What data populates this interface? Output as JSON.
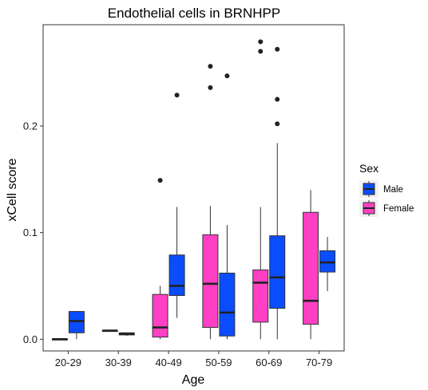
{
  "chart_data": {
    "type": "boxplot",
    "title": "Endothelial cells in BRNHPP",
    "xlabel": "Age",
    "ylabel": "xCell score",
    "ylim": [
      -0.011,
      0.295
    ],
    "yticks": [
      0.0,
      0.1,
      0.2
    ],
    "ytick_labels": [
      "0.0",
      "0.1",
      "0.2"
    ],
    "categories": [
      "20-29",
      "30-39",
      "40-49",
      "50-59",
      "60-69",
      "70-79"
    ],
    "grid": false,
    "legend": {
      "title": "Sex",
      "placement": "right",
      "entries": [
        {
          "name": "Male",
          "color": "#0A4DFF"
        },
        {
          "name": "Female",
          "color": "#FF40C4"
        }
      ]
    },
    "series": [
      {
        "name": "Male",
        "color": "#0A4DFF",
        "boxes": [
          {
            "category": "20-29",
            "min": 0.0,
            "q1": 0.006,
            "median": 0.017,
            "q3": 0.026,
            "max": 0.026,
            "outliers": []
          },
          {
            "category": "30-39",
            "min": 0.003,
            "q1": 0.004,
            "median": 0.005,
            "q3": 0.006,
            "max": 0.006,
            "outliers": []
          },
          {
            "category": "40-49",
            "min": 0.02,
            "q1": 0.041,
            "median": 0.05,
            "q3": 0.079,
            "max": 0.124,
            "outliers": [
              0.229
            ]
          },
          {
            "category": "50-59",
            "min": 0.0,
            "q1": 0.003,
            "median": 0.025,
            "q3": 0.062,
            "max": 0.107,
            "outliers": [
              0.247
            ]
          },
          {
            "category": "60-69",
            "min": 0.0,
            "q1": 0.029,
            "median": 0.058,
            "q3": 0.097,
            "max": 0.184,
            "outliers": [
              0.202,
              0.225,
              0.272
            ]
          },
          {
            "category": "70-79",
            "min": 0.045,
            "q1": 0.063,
            "median": 0.072,
            "q3": 0.083,
            "max": 0.096,
            "outliers": []
          }
        ]
      },
      {
        "name": "Female",
        "color": "#FF40C4",
        "boxes": [
          {
            "category": "20-29",
            "min": 0.0,
            "q1": 0.0,
            "median": 0.0,
            "q3": 0.0,
            "max": 0.0,
            "outliers": []
          },
          {
            "category": "30-39",
            "min": 0.008,
            "q1": 0.008,
            "median": 0.008,
            "q3": 0.008,
            "max": 0.008,
            "outliers": []
          },
          {
            "category": "40-49",
            "min": 0.0,
            "q1": 0.002,
            "median": 0.011,
            "q3": 0.042,
            "max": 0.05,
            "outliers": [
              0.149
            ]
          },
          {
            "category": "50-59",
            "min": 0.0,
            "q1": 0.011,
            "median": 0.052,
            "q3": 0.098,
            "max": 0.125,
            "outliers": [
              0.236,
              0.256
            ]
          },
          {
            "category": "60-69",
            "min": 0.0,
            "q1": 0.016,
            "median": 0.053,
            "q3": 0.065,
            "max": 0.124,
            "outliers": [
              0.27,
              0.279
            ]
          },
          {
            "category": "70-79",
            "min": 0.0,
            "q1": 0.014,
            "median": 0.036,
            "q3": 0.119,
            "max": 0.14,
            "outliers": []
          }
        ]
      }
    ]
  }
}
